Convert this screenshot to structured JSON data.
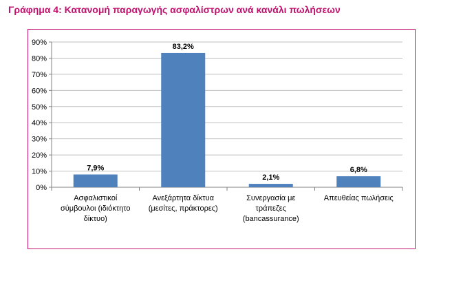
{
  "title": "Γράφημα 4: Κατανομή παραγωγής ασφαλίστρων ανά κανάλι πωλήσεων",
  "colors": {
    "title": "#c0106d",
    "frame": "#c0106d",
    "bar": "#4f81bd",
    "grid": "#bfbfbf"
  },
  "chart_data": {
    "type": "bar",
    "title": "",
    "xlabel": "",
    "ylabel": "",
    "ylim": [
      0,
      90
    ],
    "yticks": [
      "0%",
      "10%",
      "20%",
      "30%",
      "40%",
      "50%",
      "60%",
      "70%",
      "80%",
      "90%"
    ],
    "grid": true,
    "categories": [
      [
        "Ασφαλιστικοί",
        "σύμβουλοι (ιδιόκτητο",
        "δίκτυο)"
      ],
      [
        "Ανεξάρτητα δίκτυα",
        "(μεσίτες, πράκτορες)"
      ],
      [
        "Συνεργασία με",
        "τράπεζες",
        "(bancassurance)"
      ],
      [
        "Απευθείας πωλήσεις"
      ]
    ],
    "values": [
      7.9,
      83.2,
      2.1,
      6.8
    ],
    "data_labels": [
      "7,9%",
      "83,2%",
      "2,1%",
      "6,8%"
    ]
  }
}
